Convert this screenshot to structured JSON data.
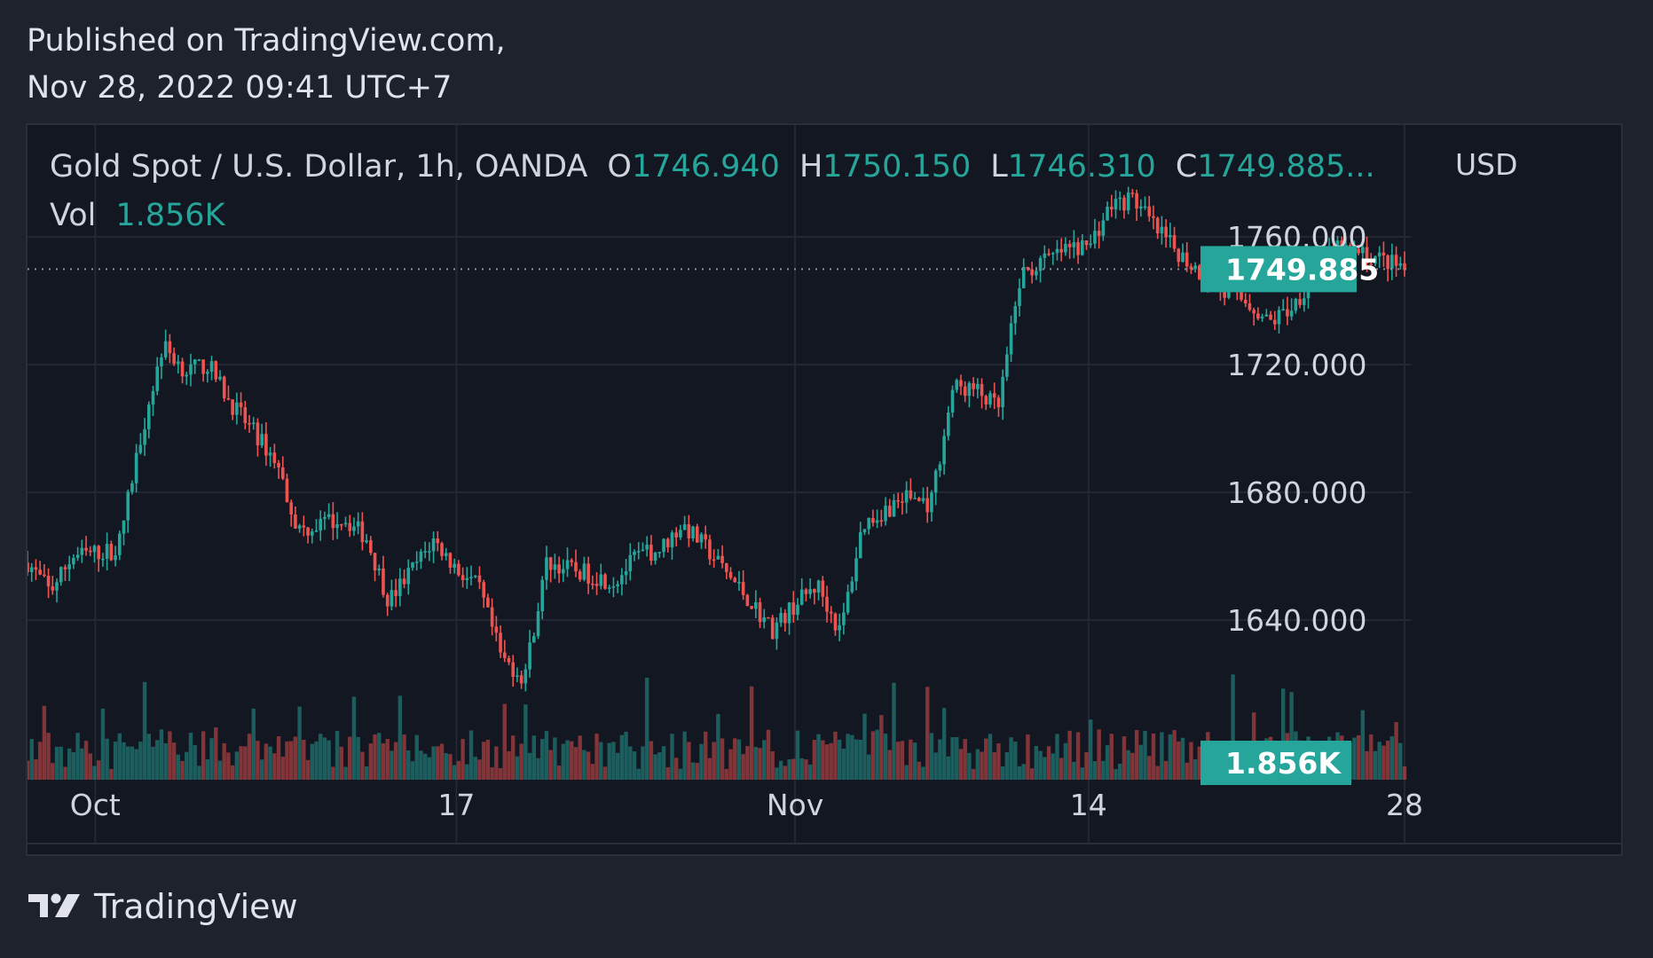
{
  "header": {
    "line1": "Published on TradingView.com,",
    "line2": "Nov 28, 2022 09:41 UTC+7"
  },
  "legend": {
    "symbol": "Gold Spot / U.S. Dollar, 1h, OANDA",
    "open_label": "O",
    "open": "1746.940",
    "high_label": "H",
    "high": "1750.150",
    "low_label": "L",
    "low": "1746.310",
    "close_label": "C",
    "close": "1749.885...",
    "vol_label": "Vol",
    "vol": "1.856K"
  },
  "currency": "USD",
  "footer": {
    "brand": "TradingView"
  },
  "colors": {
    "up": "#26a69a",
    "down": "#ef5350",
    "background": "#131722",
    "page": "#1e222d",
    "grid": "#232733",
    "text": "#d1d4dc"
  },
  "chart_data": {
    "type": "line",
    "title": "",
    "series": [
      {
        "name": "",
        "x": [
          "2022-09-28",
          "2022-09-29",
          "2022-09-30",
          "2022-10-02",
          "2022-10-03",
          "2022-10-04",
          "2022-10-05",
          "2022-10-06",
          "2022-10-07",
          "2022-10-09",
          "2022-10-10",
          "2022-10-11",
          "2022-10-12",
          "2022-10-13",
          "2022-10-14",
          "2022-10-16",
          "2022-10-17",
          "2022-10-18",
          "2022-10-19",
          "2022-10-20",
          "2022-10-21",
          "2022-10-23",
          "2022-10-24",
          "2022-10-25",
          "2022-10-26",
          "2022-10-27",
          "2022-10-28",
          "2022-10-30",
          "2022-10-31",
          "2022-11-01",
          "2022-11-02",
          "2022-11-03",
          "2022-11-04",
          "2022-11-06",
          "2022-11-07",
          "2022-11-08",
          "2022-11-09",
          "2022-11-10",
          "2022-11-11",
          "2022-11-13",
          "2022-11-14",
          "2022-11-15",
          "2022-11-16",
          "2022-11-17",
          "2022-11-18",
          "2022-11-20",
          "2022-11-21",
          "2022-11-22",
          "2022-11-23",
          "2022-11-24",
          "2022-11-25",
          "2022-11-27",
          "2022-11-28"
        ],
        "values": [
          1658,
          1649,
          1660,
          1662,
          1697,
          1726,
          1718,
          1720,
          1708,
          1690,
          1668,
          1670,
          1672,
          1666,
          1646,
          1665,
          1656,
          1650,
          1628,
          1622,
          1658,
          1654,
          1652,
          1660,
          1662,
          1670,
          1663,
          1646,
          1637,
          1645,
          1651,
          1636,
          1670,
          1679,
          1676,
          1713,
          1712,
          1706,
          1748,
          1756,
          1757,
          1770,
          1772,
          1762,
          1755,
          1742,
          1740,
          1733,
          1738,
          1748,
          1756,
          1753,
          1749.885
        ]
      }
    ],
    "volume": {
      "name": "Vol",
      "last": "1.856K"
    },
    "yaxis": {
      "ticks": [
        1640,
        1680,
        1720,
        1760
      ],
      "tick_labels": [
        "1640.000",
        "1680.000",
        "1720.000",
        "1760.000"
      ],
      "range": [
        1590,
        1795
      ]
    },
    "xaxis": {
      "tick_labels": [
        "Oct",
        "17",
        "Nov",
        "14",
        "28"
      ],
      "tick_dates": [
        "2022-10-01",
        "2022-10-17",
        "2022-11-01",
        "2022-11-14",
        "2022-11-28"
      ],
      "range": [
        "2022-09-28",
        "2022-11-28"
      ]
    },
    "last_price": 1749.885,
    "last_price_label": "1749.885",
    "last_volume_label": "1.856K",
    "grid": true,
    "legend": "top-left"
  }
}
